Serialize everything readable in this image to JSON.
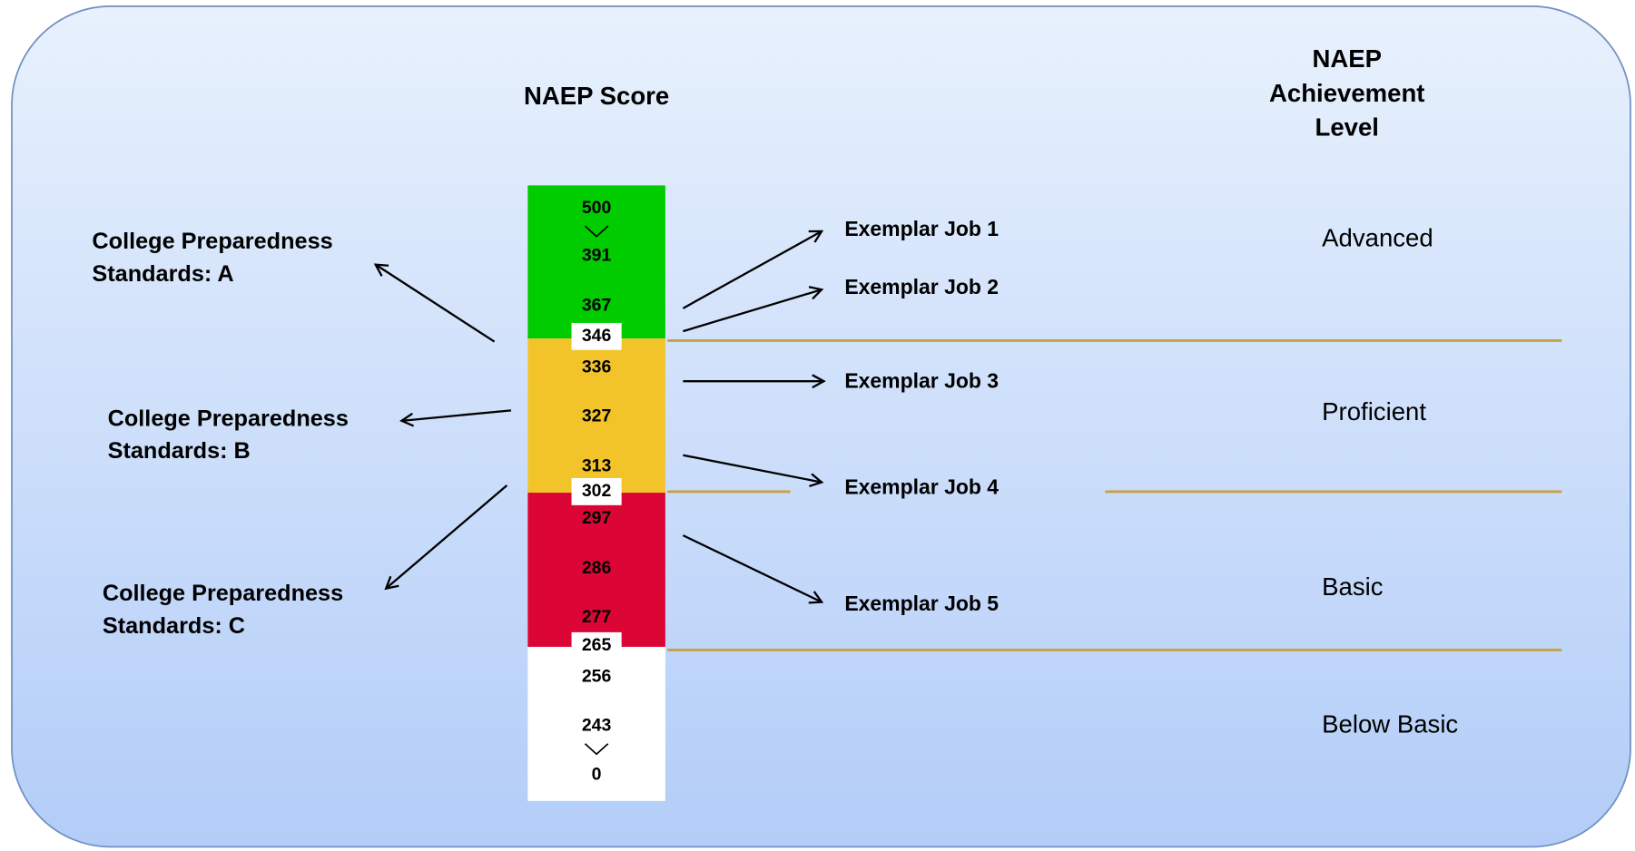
{
  "header": {
    "score_title": "NAEP Score",
    "level_title": [
      "NAEP",
      "Achievement",
      "Level"
    ]
  },
  "scores": [
    "500",
    "391",
    "367",
    "336",
    "327",
    "313",
    "297",
    "286",
    "277",
    "256",
    "243",
    "0"
  ],
  "cut_scores": [
    "346",
    "302",
    "265"
  ],
  "standards": [
    [
      "College Preparedness",
      "Standards: A"
    ],
    [
      "College Preparedness",
      "Standards: B"
    ],
    [
      "College Preparedness",
      "Standards: C"
    ]
  ],
  "jobs": [
    "Exemplar Job 1",
    "Exemplar Job 2",
    "Exemplar Job 3",
    "Exemplar Job 4",
    "Exemplar Job 5"
  ],
  "levels": [
    "Advanced",
    "Proficient",
    "Basic",
    "Below Basic"
  ]
}
